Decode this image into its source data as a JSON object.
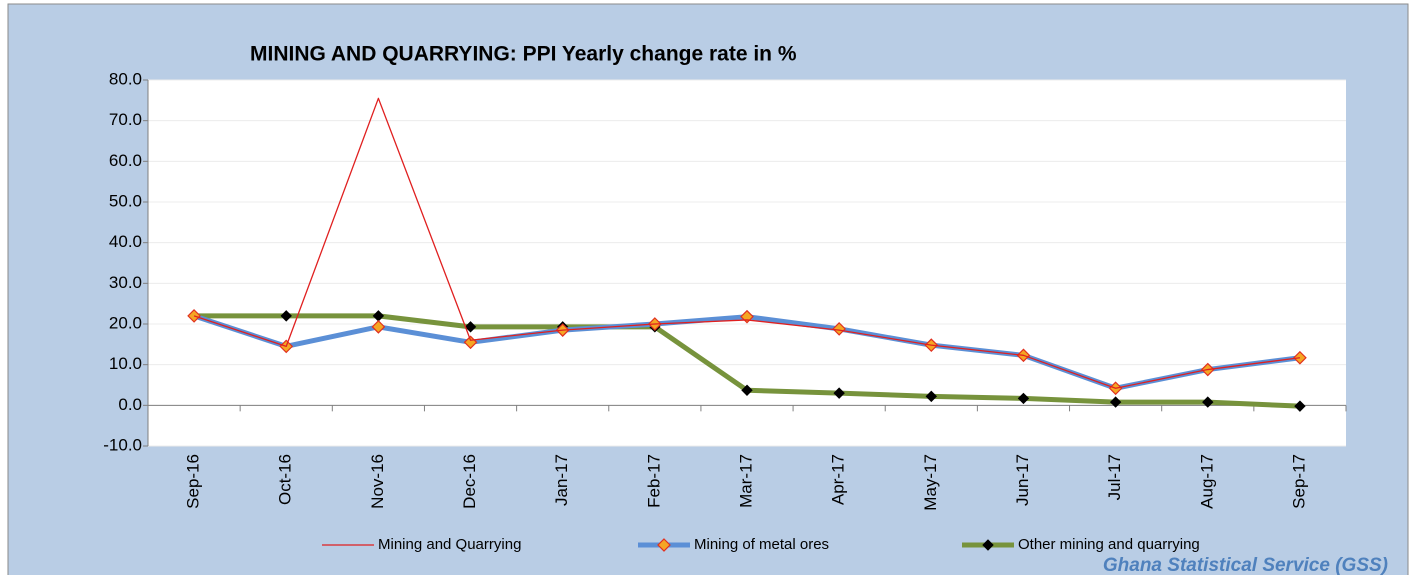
{
  "chart_data": {
    "type": "line",
    "title": "MINING AND QUARRYING:  PPI  Yearly change rate  in %",
    "source": "Ghana Statistical Service (GSS)",
    "categories": [
      "Sep-16",
      "Oct-16",
      "Nov-16",
      "Dec-16",
      "Jan-17",
      "Feb-17",
      "Mar-17",
      "Apr-17",
      "May-17",
      "Jun-17",
      "Jul-17",
      "Aug-17",
      "Sep-17"
    ],
    "series": [
      {
        "name": "Mining and Quarrying",
        "color": "#e02020",
        "marker": "none",
        "values": [
          22.0,
          14.5,
          75.5,
          16.0,
          18.5,
          20.0,
          21.0,
          18.5,
          14.8,
          12.3,
          4.2,
          8.8,
          11.7
        ]
      },
      {
        "name": "Mining of metal ores",
        "color": "#5b8fd6",
        "marker": "orange-diamond",
        "values": [
          22.0,
          14.5,
          19.3,
          15.5,
          18.5,
          20.0,
          21.8,
          18.8,
          14.8,
          12.3,
          4.2,
          8.8,
          11.7
        ]
      },
      {
        "name": "Other mining and quarrying",
        "color": "#77933c",
        "marker": "black-diamond",
        "values": [
          22.0,
          22.0,
          22.0,
          19.3,
          19.3,
          19.3,
          3.7,
          3.0,
          2.2,
          1.7,
          0.8,
          0.8,
          -0.2
        ]
      }
    ],
    "ylim": [
      -10,
      80
    ],
    "yticks": [
      {
        "value": -10,
        "label": "-10.0"
      },
      {
        "value": 0,
        "label": "0.0"
      },
      {
        "value": 10,
        "label": "10.0"
      },
      {
        "value": 20,
        "label": "20.0"
      },
      {
        "value": 30,
        "label": "30.0"
      },
      {
        "value": 40,
        "label": "40.0"
      },
      {
        "value": 50,
        "label": "50.0"
      },
      {
        "value": 60,
        "label": "60.0"
      },
      {
        "value": 70,
        "label": "70.0"
      },
      {
        "value": 80,
        "label": "80.0"
      }
    ],
    "grid": true,
    "legend": "bottom"
  }
}
